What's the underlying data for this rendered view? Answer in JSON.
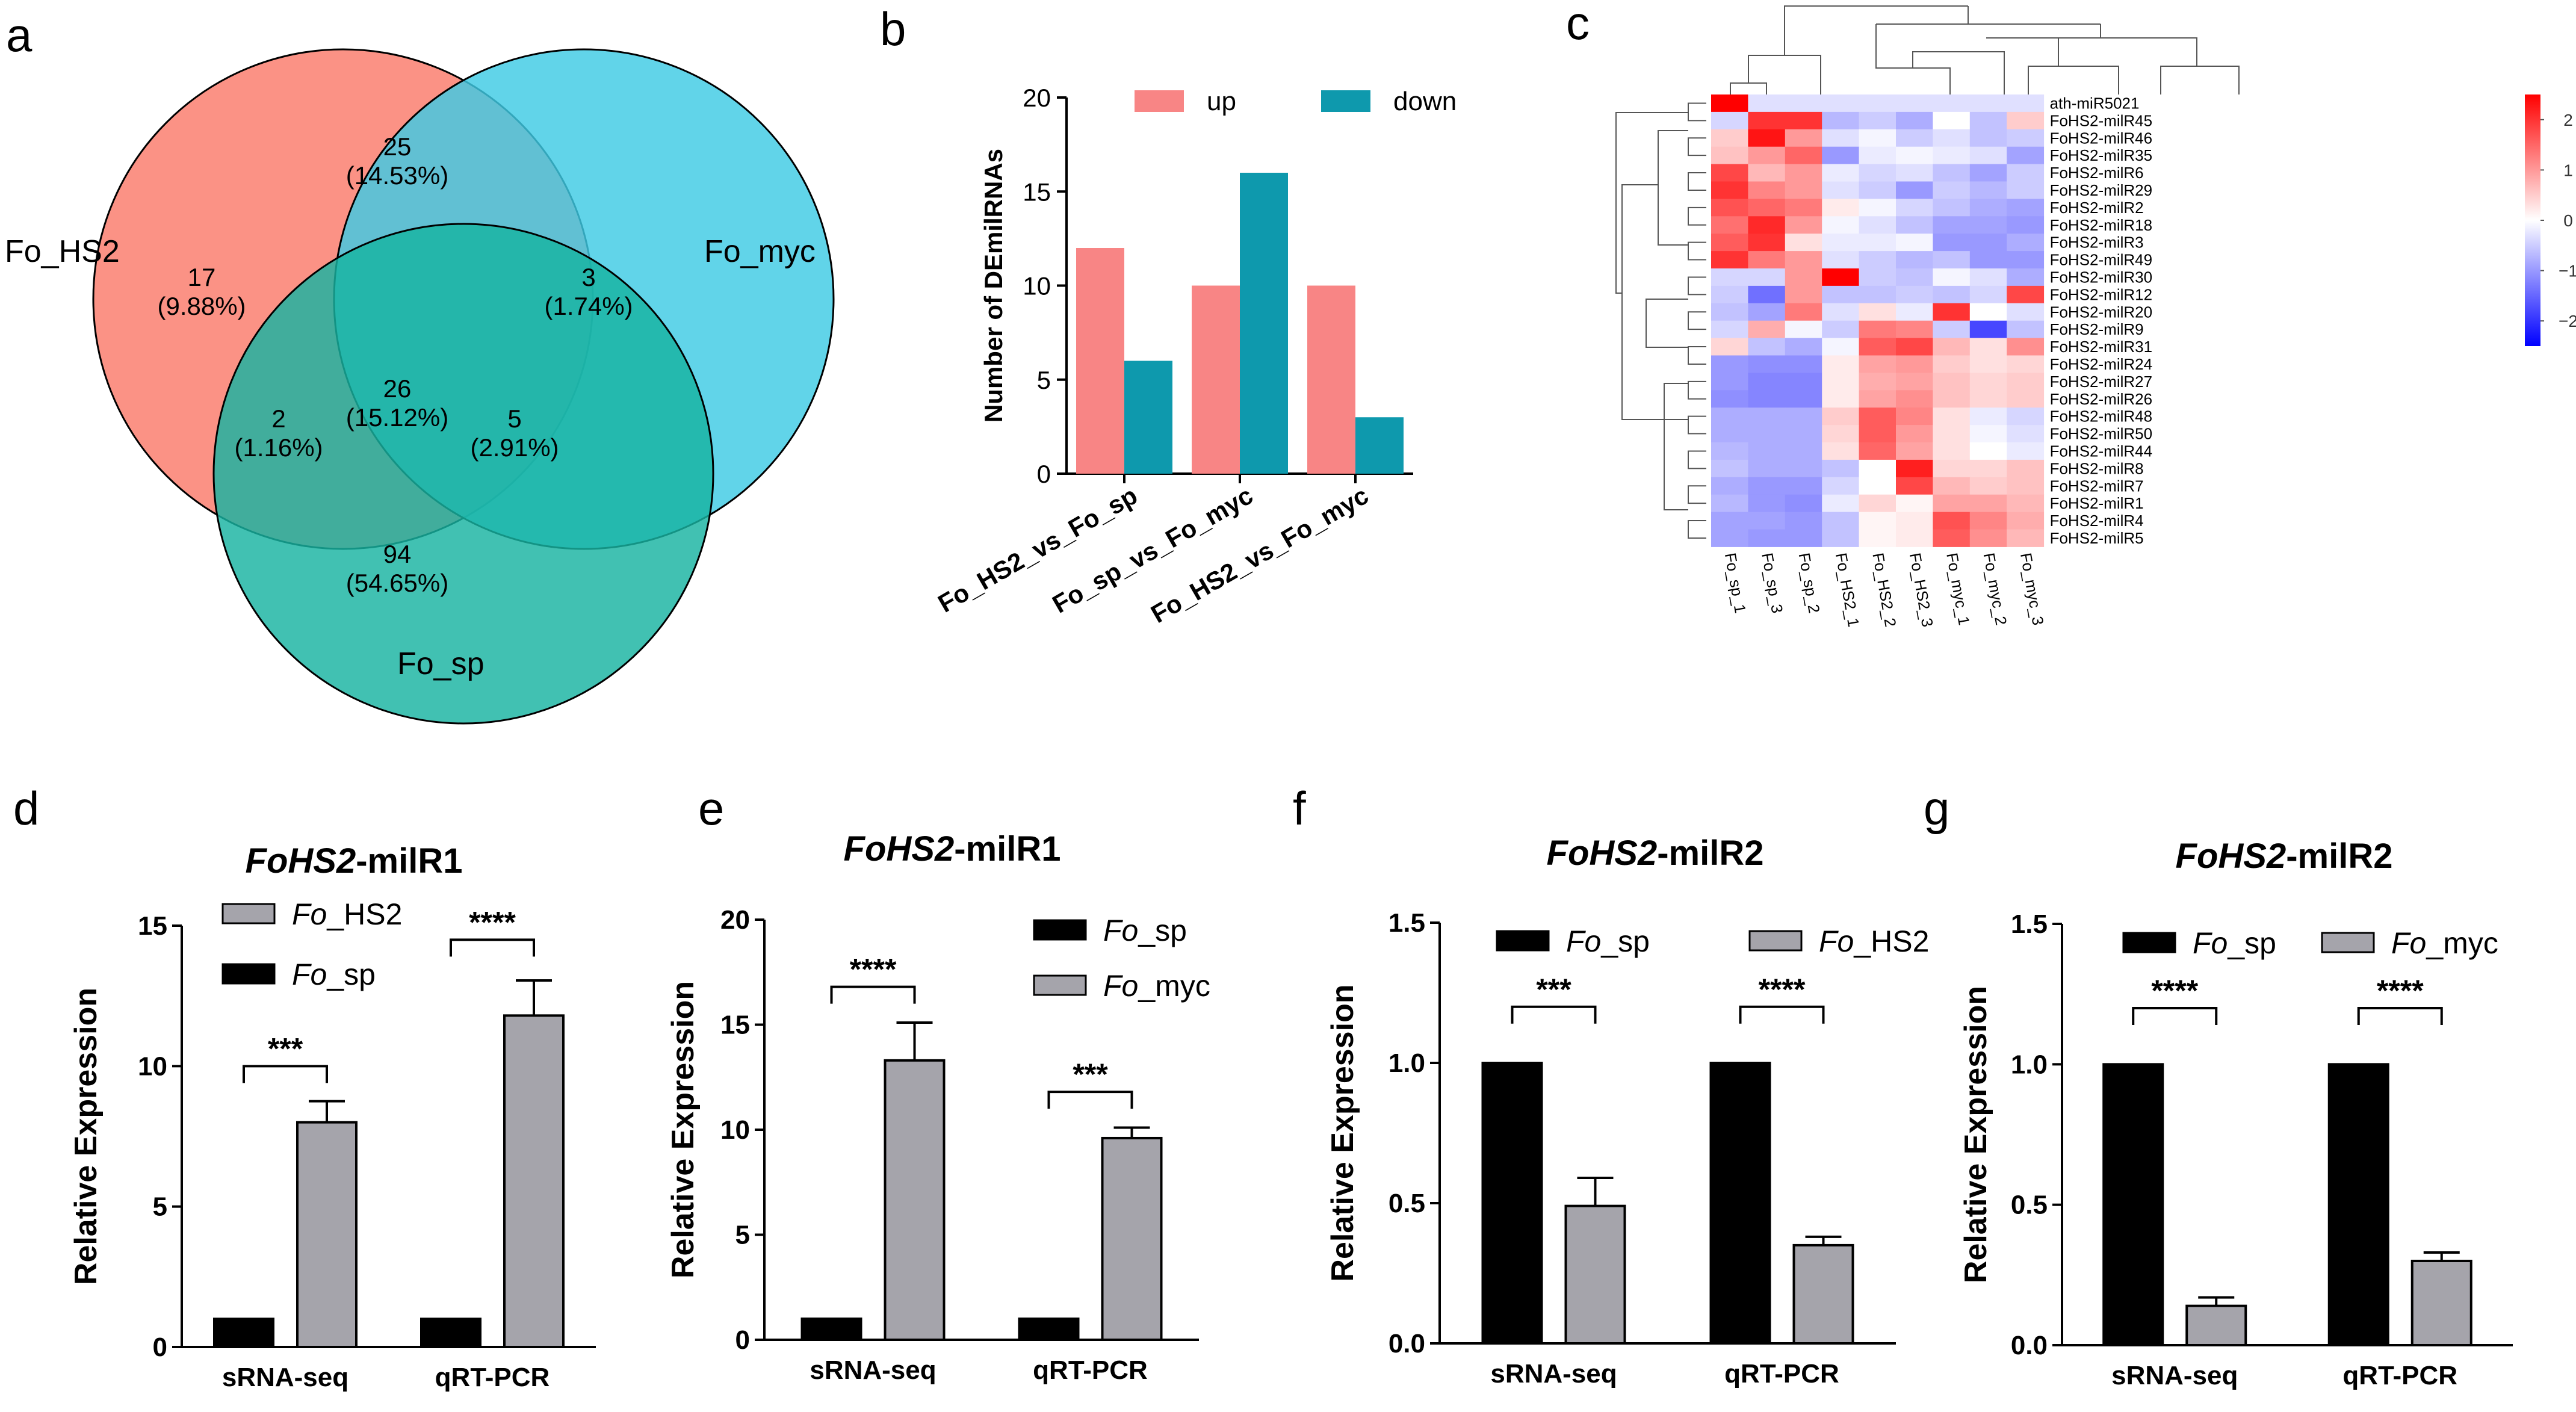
{
  "panel_letters": [
    "a",
    "b",
    "c",
    "d",
    "e",
    "f",
    "g"
  ],
  "colors": {
    "venn_hs2": "#FA7A6A",
    "venn_myc": "#3ECBE4",
    "venn_sp": "#17B3A1",
    "bar_up": "#F88585",
    "bar_down": "#0E99AD",
    "bar_black": "#000000",
    "bar_gray": "#A5A4AB",
    "heat_high": "#FF0000",
    "heat_mid": "#FFFFFF",
    "heat_low": "#0000FF"
  },
  "chart_data": [
    {
      "panel": "a",
      "type": "venn",
      "sets": [
        "Fo_HS2",
        "Fo_myc",
        "Fo_sp"
      ],
      "regions": [
        {
          "sets": [
            "Fo_HS2"
          ],
          "count": "17",
          "percent": "(9.88%)"
        },
        {
          "sets": [
            "Fo_myc"
          ],
          "count": "3",
          "percent": "(1.74%)"
        },
        {
          "sets": [
            "Fo_sp"
          ],
          "count": "94",
          "percent": "(54.65%)"
        },
        {
          "sets": [
            "Fo_HS2",
            "Fo_myc"
          ],
          "count": "25",
          "percent": "(14.53%)"
        },
        {
          "sets": [
            "Fo_HS2",
            "Fo_sp"
          ],
          "count": "2",
          "percent": "(1.16%)"
        },
        {
          "sets": [
            "Fo_myc",
            "Fo_sp"
          ],
          "count": "5",
          "percent": "(2.91%)"
        },
        {
          "sets": [
            "Fo_HS2",
            "Fo_myc",
            "Fo_sp"
          ],
          "count": "26",
          "percent": "(15.12%)"
        }
      ]
    },
    {
      "panel": "b",
      "type": "bar",
      "ylabel": "Number of DEmilRNAs",
      "ylim": [
        0,
        20
      ],
      "yticks": [
        "0",
        "5",
        "10",
        "15",
        "20"
      ],
      "categories": [
        "Fo_HS2_vs_Fo_sp",
        "Fo_sp_vs_Fo_myc",
        "Fo_HS2_vs_Fo_myc"
      ],
      "series": [
        {
          "name": "up",
          "values": [
            12,
            10,
            10
          ]
        },
        {
          "name": "down",
          "values": [
            6,
            16,
            3
          ]
        }
      ]
    },
    {
      "panel": "c",
      "type": "heatmap",
      "columns": [
        "Fo_sp_1",
        "Fo_sp_3",
        "Fo_sp_2",
        "Fo_HS2_1",
        "Fo_HS2_2",
        "Fo_HS2_3",
        "Fo_myc_1",
        "Fo_myc_2",
        "Fo_myc_3"
      ],
      "rows": [
        "ath-miR5021",
        "FoHS2-milR45",
        "FoHS2-milR46",
        "FoHS2-milR35",
        "FoHS2-milR6",
        "FoHS2-milR29",
        "FoHS2-milR2",
        "FoHS2-milR18",
        "FoHS2-milR3",
        "FoHS2-milR49",
        "FoHS2-milR30",
        "FoHS2-milR12",
        "FoHS2-milR20",
        "FoHS2-milR9",
        "FoHS2-milR31",
        "FoHS2-milR24",
        "FoHS2-milR27",
        "FoHS2-milR26",
        "FoHS2-milR48",
        "FoHS2-milR50",
        "FoHS2-milR44",
        "FoHS2-milR8",
        "FoHS2-milR7",
        "FoHS2-milR1",
        "FoHS2-milR4",
        "FoHS2-milR5"
      ],
      "zlim": [
        -2.5,
        2.5
      ],
      "colorbar_ticks": [
        "2",
        "1",
        "0",
        "−1",
        "−2"
      ],
      "values": [
        [
          2.6,
          -0.3,
          -0.3,
          -0.3,
          -0.3,
          -0.3,
          -0.3,
          -0.3,
          -0.3
        ],
        [
          -0.4,
          2.0,
          2.0,
          -0.7,
          -0.5,
          -0.8,
          0.0,
          -0.6,
          0.5
        ],
        [
          0.5,
          2.3,
          1.0,
          -0.3,
          -0.1,
          -0.5,
          -0.3,
          -0.6,
          -0.5
        ],
        [
          0.6,
          1.0,
          1.5,
          -1.0,
          -0.2,
          -0.1,
          -0.2,
          -0.3,
          -0.9
        ],
        [
          1.8,
          0.7,
          1.0,
          -0.2,
          -0.4,
          -0.3,
          -0.6,
          -0.9,
          -0.5
        ],
        [
          2.0,
          1.2,
          1.0,
          -0.3,
          -0.5,
          -1.0,
          -0.5,
          -0.7,
          -0.5
        ],
        [
          1.7,
          1.5,
          1.3,
          0.2,
          -0.1,
          -0.4,
          -0.6,
          -0.8,
          -0.9
        ],
        [
          1.4,
          2.1,
          1.0,
          -0.1,
          -0.3,
          -0.6,
          -0.9,
          -0.9,
          -1.0
        ],
        [
          1.6,
          2.0,
          0.3,
          -0.2,
          -0.2,
          -0.1,
          -1.0,
          -1.0,
          -0.8
        ],
        [
          2.0,
          1.3,
          1.0,
          -0.3,
          -0.5,
          -0.7,
          -0.6,
          -1.0,
          -1.0
        ],
        [
          -0.4,
          -0.4,
          1.0,
          2.5,
          -0.5,
          -0.6,
          -0.1,
          -0.3,
          -0.8
        ],
        [
          -0.5,
          -1.4,
          1.0,
          -0.6,
          -0.6,
          -0.5,
          -0.6,
          -0.4,
          1.8
        ],
        [
          -0.6,
          -0.9,
          1.3,
          -0.3,
          0.3,
          -0.2,
          2.0,
          0.0,
          -0.3
        ],
        [
          -0.4,
          0.8,
          -0.1,
          -0.5,
          1.3,
          1.2,
          -0.5,
          -1.8,
          -0.6
        ],
        [
          0.4,
          -0.6,
          -0.8,
          -0.1,
          1.6,
          1.8,
          0.7,
          0.3,
          1.1
        ],
        [
          -1.0,
          -1.1,
          -1.1,
          0.2,
          0.9,
          1.0,
          0.5,
          0.3,
          0.4
        ],
        [
          -1.0,
          -1.2,
          -1.2,
          0.2,
          0.8,
          0.9,
          0.6,
          0.4,
          0.5
        ],
        [
          -1.1,
          -1.2,
          -1.2,
          0.2,
          0.9,
          1.1,
          0.6,
          0.4,
          0.5
        ],
        [
          -0.8,
          -0.8,
          -0.8,
          0.5,
          1.6,
          1.2,
          0.3,
          -0.2,
          -0.4
        ],
        [
          -0.8,
          -0.8,
          -0.8,
          0.4,
          1.6,
          1.0,
          0.3,
          -0.1,
          -0.3
        ],
        [
          -0.7,
          -0.8,
          -0.8,
          0.3,
          1.5,
          0.9,
          0.3,
          0.0,
          -0.2
        ],
        [
          -0.6,
          -0.8,
          -0.8,
          -0.6,
          0.0,
          2.2,
          0.4,
          0.4,
          0.6
        ],
        [
          -0.8,
          -1.0,
          -1.0,
          -0.4,
          0.0,
          1.8,
          0.7,
          0.5,
          0.6
        ],
        [
          -0.7,
          -1.0,
          -1.1,
          -0.2,
          0.4,
          0.1,
          0.9,
          0.9,
          0.7
        ],
        [
          -0.9,
          -0.9,
          -1.0,
          -0.6,
          0.1,
          0.2,
          1.7,
          1.2,
          0.8
        ],
        [
          -0.9,
          -1.0,
          -1.0,
          -0.6,
          0.1,
          0.2,
          1.6,
          1.1,
          0.7
        ]
      ]
    },
    {
      "panel": "d",
      "type": "bar",
      "title": "-milR1",
      "title_italic": "FoHS2",
      "ylabel": "Relative Expression",
      "ylim": [
        0,
        15
      ],
      "yticks": [
        "0",
        "5",
        "10",
        "15"
      ],
      "categories": [
        "sRNA-seq",
        "qRT-PCR"
      ],
      "legend_order": [
        1,
        0
      ],
      "series": [
        {
          "name_italic": "Fo",
          "name_rest": "_sp",
          "color": "black",
          "values": [
            1.0,
            1.0
          ],
          "errors": [
            0,
            0
          ]
        },
        {
          "name_italic": "Fo",
          "name_rest": "_HS2",
          "color": "gray",
          "values": [
            8.0,
            11.8
          ],
          "errors": [
            0.75,
            1.25
          ]
        }
      ],
      "significance": [
        "***",
        "****"
      ],
      "sig_levels": [
        10.0,
        14.5
      ]
    },
    {
      "panel": "e",
      "type": "bar",
      "title": "-milR1",
      "title_italic": "FoHS2",
      "ylabel": "Relative Expression",
      "ylim": [
        0,
        20
      ],
      "yticks": [
        "0",
        "5",
        "10",
        "15",
        "20"
      ],
      "categories": [
        "sRNA-seq",
        "qRT-PCR"
      ],
      "legend_order": [
        0,
        1
      ],
      "series": [
        {
          "name_italic": "Fo",
          "name_rest": "_sp",
          "color": "black",
          "values": [
            1.0,
            1.0
          ],
          "errors": [
            0,
            0
          ]
        },
        {
          "name_italic": "Fo",
          "name_rest": "_myc",
          "color": "gray",
          "values": [
            13.3,
            9.6
          ],
          "errors": [
            1.8,
            0.5
          ]
        }
      ],
      "significance": [
        "****",
        "***"
      ],
      "sig_levels": [
        16.8,
        11.8
      ]
    },
    {
      "panel": "f",
      "type": "bar",
      "title": "-milR2",
      "title_italic": "FoHS2",
      "ylabel": "Relative Expression",
      "ylim": [
        0,
        1.5
      ],
      "yticks": [
        "0.0",
        "0.5",
        "1.0",
        "1.5"
      ],
      "categories": [
        "sRNA-seq",
        "qRT-PCR"
      ],
      "legend_order": [
        0,
        1
      ],
      "series": [
        {
          "name_italic": "Fo",
          "name_rest": "_sp",
          "color": "black",
          "values": [
            1.0,
            1.0
          ],
          "errors": [
            0,
            0
          ]
        },
        {
          "name_italic": "Fo",
          "name_rest": "_HS2",
          "color": "gray",
          "values": [
            0.49,
            0.35
          ],
          "errors": [
            0.1,
            0.03
          ]
        }
      ],
      "significance": [
        "***",
        "****"
      ],
      "sig_levels": [
        1.2,
        1.2
      ]
    },
    {
      "panel": "g",
      "type": "bar",
      "title": "-milR2",
      "title_italic": "FoHS2",
      "ylabel": "Relative Expression",
      "ylim": [
        0,
        1.5
      ],
      "yticks": [
        "0.0",
        "0.5",
        "1.0",
        "1.5"
      ],
      "categories": [
        "sRNA-seq",
        "qRT-PCR"
      ],
      "legend_order": [
        0,
        1
      ],
      "series": [
        {
          "name_italic": "Fo",
          "name_rest": "_sp",
          "color": "black",
          "values": [
            1.0,
            1.0
          ],
          "errors": [
            0,
            0
          ]
        },
        {
          "name_italic": "Fo",
          "name_rest": "_myc",
          "color": "gray",
          "values": [
            0.14,
            0.3
          ],
          "errors": [
            0.03,
            0.03
          ]
        }
      ],
      "significance": [
        "****",
        "****"
      ],
      "sig_levels": [
        1.2,
        1.2
      ]
    }
  ]
}
